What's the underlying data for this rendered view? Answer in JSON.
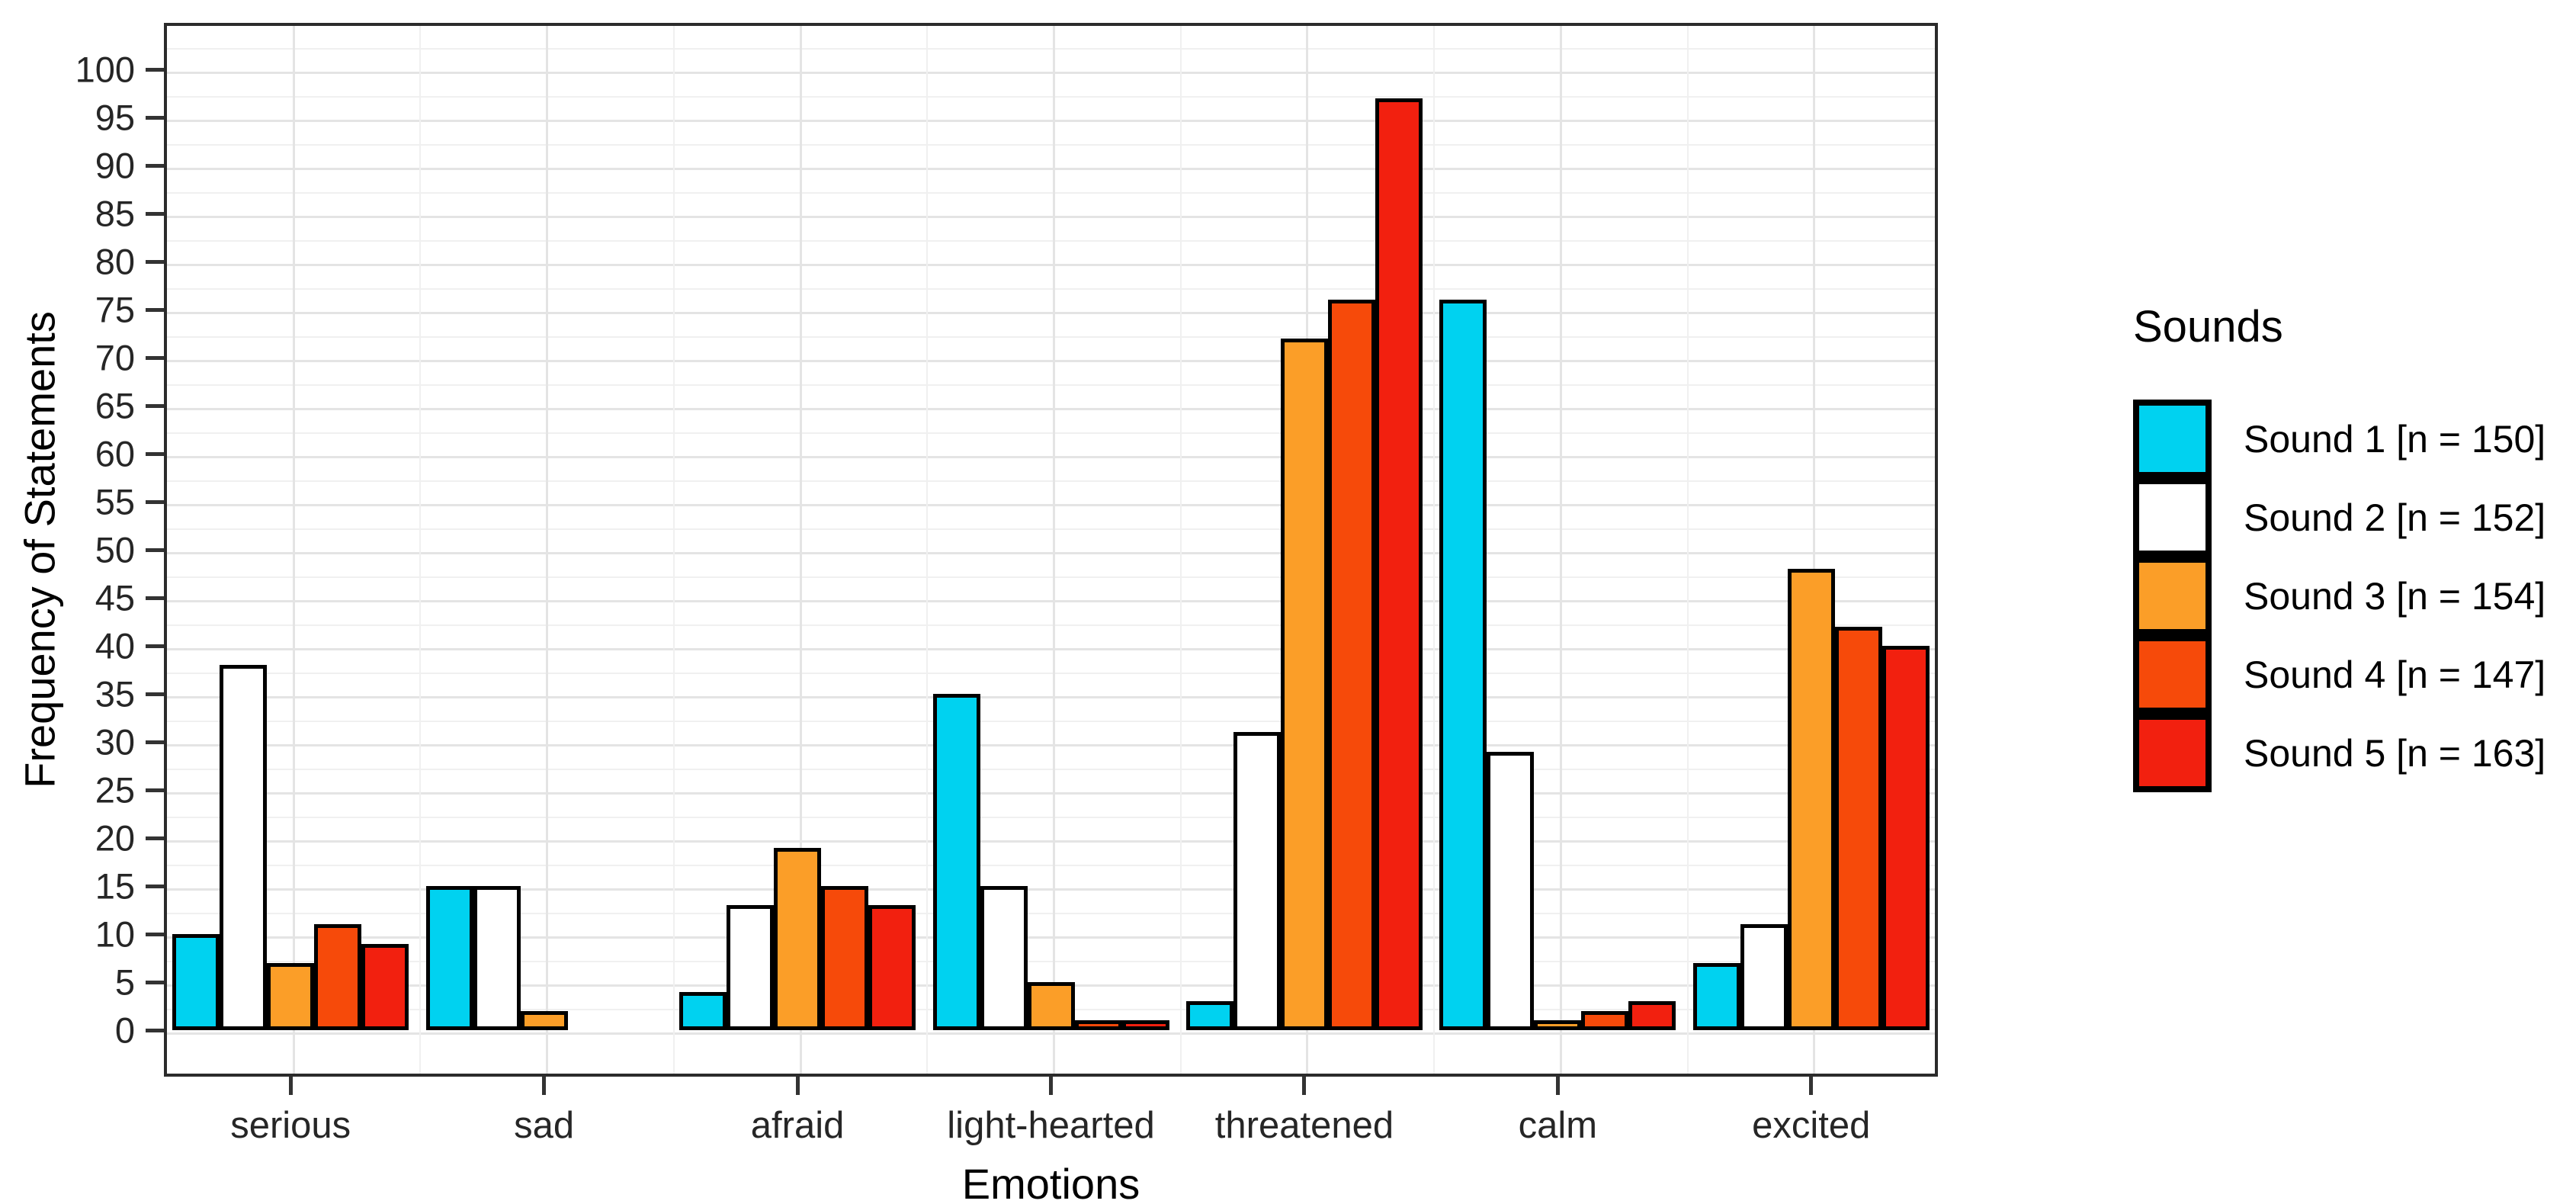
{
  "chart_data": {
    "type": "bar",
    "title": "",
    "xlabel": "Emotions",
    "ylabel": "Frequency of Statements",
    "categories": [
      "serious",
      "sad",
      "afraid",
      "light-hearted",
      "threatened",
      "calm",
      "excited"
    ],
    "series": [
      {
        "name": "Sound 1 [n = 150]",
        "color": "#00D2F0",
        "values": [
          10,
          15,
          4,
          35,
          3,
          76,
          7
        ]
      },
      {
        "name": "Sound 2 [n = 152]",
        "color": "#FFFFFF",
        "values": [
          38,
          15,
          13,
          15,
          31,
          29,
          11
        ]
      },
      {
        "name": "Sound 3 [n = 154]",
        "color": "#FB9E28",
        "values": [
          7,
          2,
          19,
          5,
          72,
          1,
          48
        ]
      },
      {
        "name": "Sound 4 [n = 147]",
        "color": "#F64A0A",
        "values": [
          11,
          0,
          15,
          1,
          76,
          2,
          42
        ]
      },
      {
        "name": "Sound 5 [n = 163]",
        "color": "#F2200F",
        "values": [
          9,
          0,
          13,
          1,
          97,
          3,
          40
        ]
      }
    ],
    "ylim": [
      0,
      105
    ],
    "ytick_min": 0,
    "ytick_max": 100,
    "ytick_step": 5,
    "minor_grid_step": 2.5,
    "legend_title": "Sounds",
    "legend_position": "right",
    "grid": "major+minor",
    "bar_border_color": "#000000",
    "panel_border_color": "#2b2b2b",
    "major_grid_color": "#e4e4e4",
    "minor_grid_color": "#f0f0f0"
  }
}
